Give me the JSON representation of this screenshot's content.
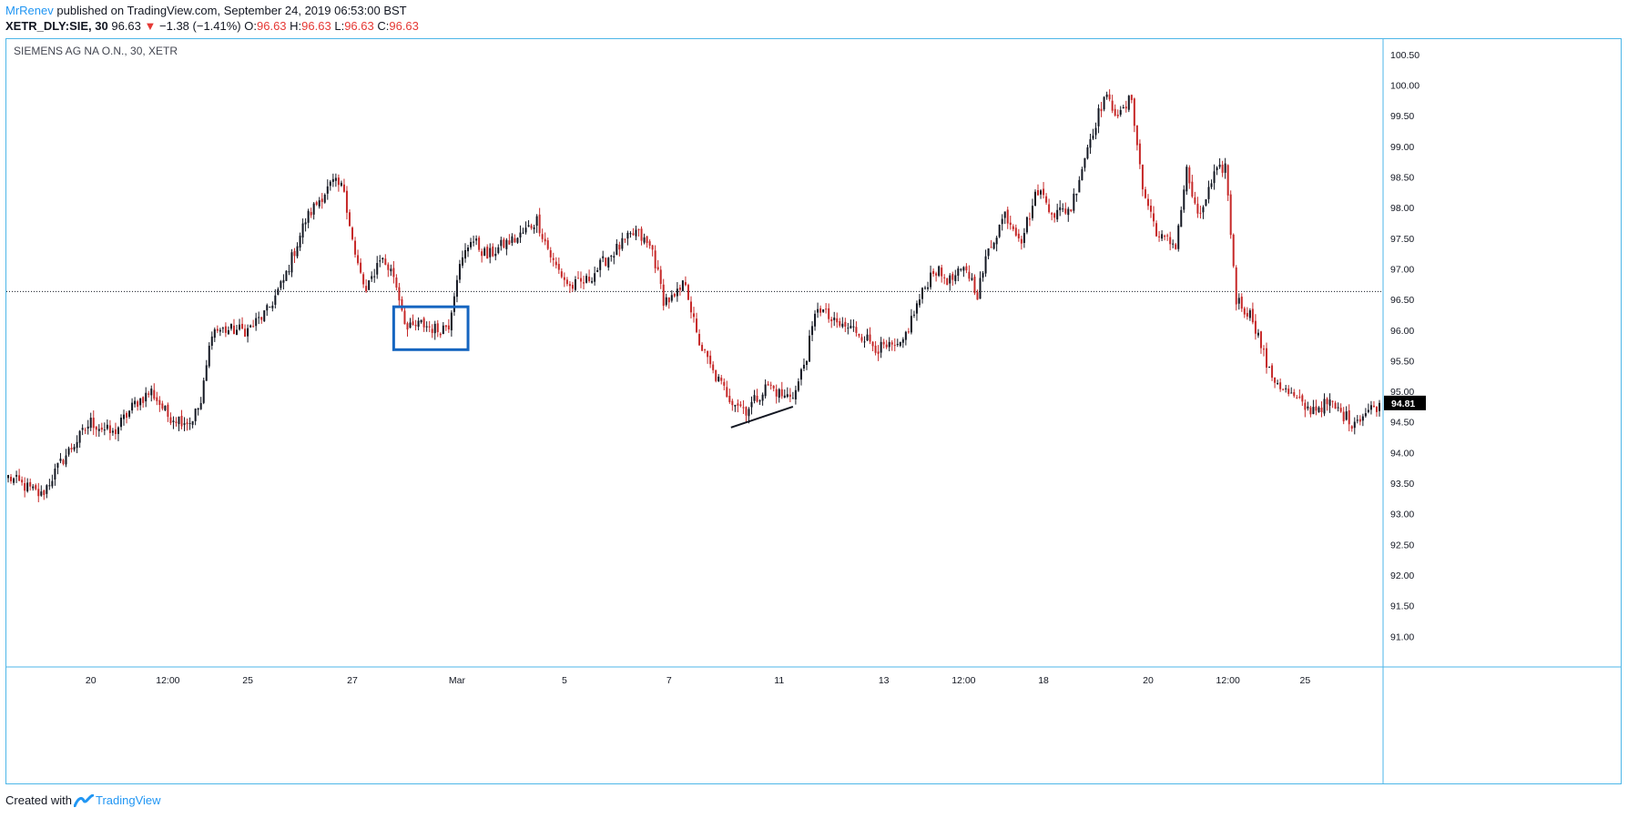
{
  "header": {
    "author": "MrRenev",
    "published_text": "published on TradingView.com, September 24, 2019 06:53:00 BST",
    "symbol_interval": "XETR_DLY:SIE, 30",
    "last_price": "96.63",
    "change_arrow": "▼",
    "change": "−1.38 (−1.41%)",
    "o_label": "O:",
    "o_value": "96.63",
    "h_label": "H:",
    "h_value": "96.63",
    "l_label": "L:",
    "l_value": "96.63",
    "c_label": "C:",
    "c_value": "96.63"
  },
  "footer": {
    "created_with": "Created with",
    "brand": "TradingView"
  },
  "colors": {
    "up": "#131722",
    "down": "#c62828",
    "frame": "#4db6e8",
    "box": "#1565c0",
    "brand": "#2196f3"
  },
  "chart_data": {
    "type": "candlestick",
    "title": "SIEMENS AG NA O.N., 30, XETR",
    "y_ticks": [
      91.0,
      91.5,
      92.0,
      92.5,
      93.0,
      93.5,
      94.0,
      94.5,
      95.0,
      95.5,
      96.0,
      96.5,
      97.0,
      97.5,
      98.0,
      98.5,
      99.0,
      99.5,
      100.0,
      100.5
    ],
    "y_tick_labels": [
      "91.00",
      "91.50",
      "92.00",
      "92.50",
      "93.00",
      "93.50",
      "94.00",
      "94.50",
      "95.00",
      "95.50",
      "96.00",
      "96.50",
      "97.00",
      "97.50",
      "98.00",
      "98.50",
      "99.00",
      "99.50",
      "100.00",
      "100.50"
    ],
    "ylim": [
      90.5,
      100.75
    ],
    "x_ticks": [
      {
        "label": "20",
        "index": 30
      },
      {
        "label": "12:00",
        "index": 58
      },
      {
        "label": "25",
        "index": 87
      },
      {
        "label": "27",
        "index": 125
      },
      {
        "label": "Mar",
        "index": 163
      },
      {
        "label": "5",
        "index": 202
      },
      {
        "label": "7",
        "index": 240
      },
      {
        "label": "11",
        "index": 280
      },
      {
        "label": "13",
        "index": 318
      },
      {
        "label": "12:00",
        "index": 347
      },
      {
        "label": "18",
        "index": 376
      },
      {
        "label": "20",
        "index": 414
      },
      {
        "label": "12:00",
        "index": 443
      },
      {
        "label": "25",
        "index": 471
      }
    ],
    "n_bars": 499,
    "reference_line": 96.63,
    "last_price_label": "94.81",
    "last_price": 94.81,
    "anchors": [
      [
        0,
        93.6
      ],
      [
        12,
        93.3
      ],
      [
        20,
        93.9
      ],
      [
        30,
        94.5
      ],
      [
        38,
        94.3
      ],
      [
        46,
        94.8
      ],
      [
        52,
        95.0
      ],
      [
        58,
        94.6
      ],
      [
        66,
        94.5
      ],
      [
        70,
        94.8
      ],
      [
        74,
        96.0
      ],
      [
        80,
        96.0
      ],
      [
        87,
        96.0
      ],
      [
        94,
        96.3
      ],
      [
        100,
        96.8
      ],
      [
        108,
        97.8
      ],
      [
        114,
        98.2
      ],
      [
        118,
        98.4
      ],
      [
        122,
        98.3
      ],
      [
        126,
        97.2
      ],
      [
        130,
        96.6
      ],
      [
        135,
        97.2
      ],
      [
        140,
        96.9
      ],
      [
        145,
        96.0
      ],
      [
        150,
        96.1
      ],
      [
        156,
        96.0
      ],
      [
        160,
        96.1
      ],
      [
        163,
        96.9
      ],
      [
        168,
        97.5
      ],
      [
        174,
        97.2
      ],
      [
        180,
        97.4
      ],
      [
        185,
        97.5
      ],
      [
        192,
        97.8
      ],
      [
        198,
        97.1
      ],
      [
        204,
        96.7
      ],
      [
        210,
        96.8
      ],
      [
        218,
        97.2
      ],
      [
        228,
        97.6
      ],
      [
        234,
        97.3
      ],
      [
        238,
        96.5
      ],
      [
        242,
        96.5
      ],
      [
        246,
        96.8
      ],
      [
        250,
        95.9
      ],
      [
        256,
        95.3
      ],
      [
        262,
        94.9
      ],
      [
        268,
        94.7
      ],
      [
        276,
        95.1
      ],
      [
        282,
        94.9
      ],
      [
        286,
        95.0
      ],
      [
        290,
        95.6
      ],
      [
        294,
        96.4
      ],
      [
        300,
        96.1
      ],
      [
        308,
        96.0
      ],
      [
        316,
        95.7
      ],
      [
        324,
        95.7
      ],
      [
        330,
        96.4
      ],
      [
        336,
        97.0
      ],
      [
        342,
        96.8
      ],
      [
        348,
        97.0
      ],
      [
        352,
        96.6
      ],
      [
        356,
        97.3
      ],
      [
        362,
        97.9
      ],
      [
        368,
        97.5
      ],
      [
        374,
        98.3
      ],
      [
        380,
        97.9
      ],
      [
        386,
        98.0
      ],
      [
        392,
        99.0
      ],
      [
        398,
        99.8
      ],
      [
        404,
        99.5
      ],
      [
        408,
        99.8
      ],
      [
        412,
        98.3
      ],
      [
        418,
        97.5
      ],
      [
        424,
        97.4
      ],
      [
        428,
        98.6
      ],
      [
        432,
        97.8
      ],
      [
        438,
        98.5
      ],
      [
        442,
        98.7
      ],
      [
        446,
        96.5
      ],
      [
        452,
        96.2
      ],
      [
        458,
        95.3
      ],
      [
        464,
        95.0
      ],
      [
        472,
        94.7
      ],
      [
        480,
        94.8
      ],
      [
        488,
        94.5
      ],
      [
        498,
        94.8
      ]
    ],
    "annotations": [
      {
        "type": "rectangle",
        "x_range": [
          140,
          167
        ],
        "y_range": [
          95.68,
          96.38
        ]
      },
      {
        "type": "trendline",
        "from": [
          262.5,
          94.41
        ],
        "to": [
          285,
          94.75
        ]
      }
    ]
  }
}
